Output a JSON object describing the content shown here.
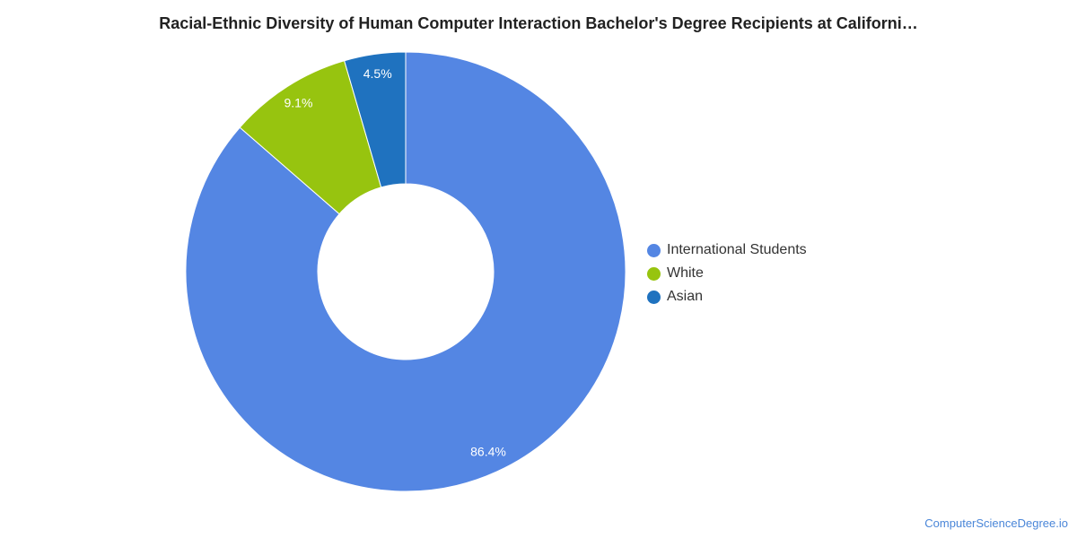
{
  "chart_data": {
    "type": "pie",
    "title": "Racial-Ethnic Diversity of Human Computer Interaction Bachelor's Degree Recipients at Californi…",
    "slices": [
      {
        "label": "International Students",
        "value": 86.4,
        "display": "86.4%",
        "color": "#5486e3"
      },
      {
        "label": "White",
        "value": 9.1,
        "display": "9.1%",
        "color": "#97c40f"
      },
      {
        "label": "Asian",
        "value": 4.5,
        "display": "4.5%",
        "color": "#1f72bf"
      }
    ],
    "donut": true,
    "legend_position": "right"
  },
  "footer": {
    "source": "ComputerScienceDegree.io"
  }
}
